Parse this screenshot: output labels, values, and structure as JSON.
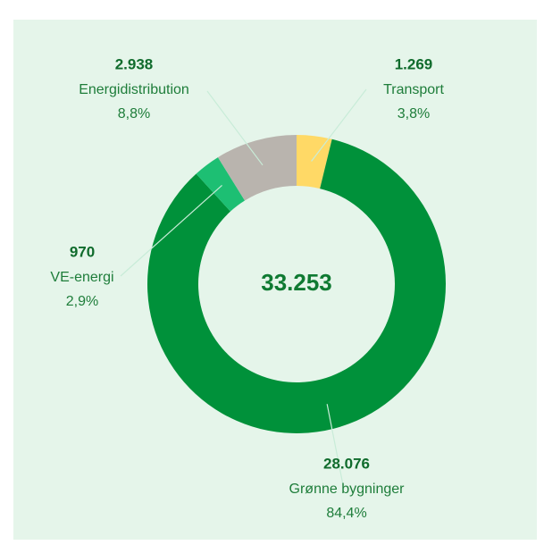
{
  "chart_data": {
    "type": "donut",
    "categories": [
      "Transport",
      "Grønne bygninger",
      "VE-energi",
      "Energidistribution"
    ],
    "values": [
      1269,
      28076,
      970,
      2938
    ],
    "value_labels": [
      "1.269",
      "28.076",
      "970",
      "2.938"
    ],
    "percents": [
      3.8,
      84.4,
      2.9,
      8.8
    ],
    "percent_labels": [
      "3,8%",
      "84,4%",
      "2,9%",
      "8,8%"
    ],
    "colors": [
      "#ffd966",
      "#00913a",
      "#1dbf73",
      "#b9b4ae"
    ],
    "total": 33253,
    "total_label": "33.253"
  }
}
